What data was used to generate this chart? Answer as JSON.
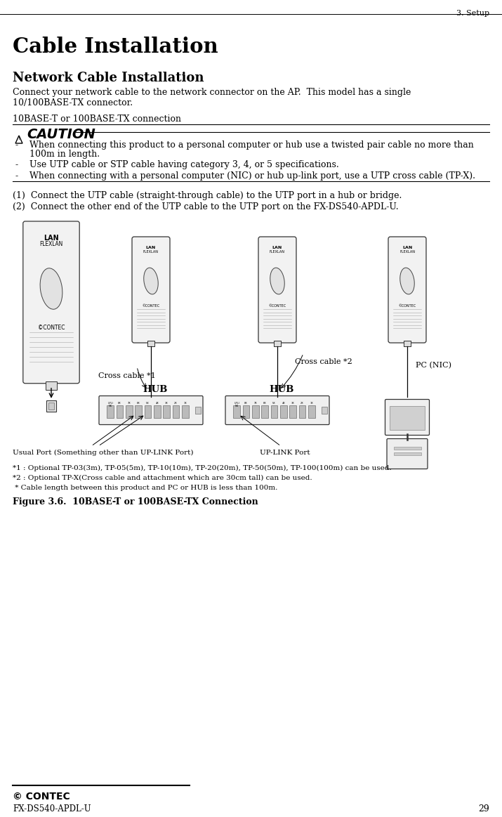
{
  "page_header": "3. Setup",
  "title": "Cable Installation",
  "subtitle": "Network Cable Installation",
  "body_text_1": "Connect your network cable to the network connector on the AP.  This model has a single",
  "body_text_2": "10/100BASE-TX connector.",
  "connection_label": "10BASE-T or 100BASE-TX connection",
  "caution_title": "CAUTION",
  "caution_item1a": "When connecting this product to a personal computer or hub use a twisted pair cable no more than",
  "caution_item1b": "100m in length.",
  "caution_item2": "Use UTP cable or STP cable having category 3, 4, or 5 specifications.",
  "caution_item3": "When connecting with a personal computer (NIC) or hub up-link port, use a UTP cross cable (TP-X).",
  "step1": "(1)  Connect the UTP cable (straight-through cable) to the UTP port in a hub or bridge.",
  "step2": "(2)  Connect the other end of the UTP cable to the UTP port on the FX-DS540-APDL-U.",
  "label_cross1": "Cross cable *1",
  "label_hub1": "HUB",
  "label_cross2": "Cross cable *2",
  "label_hub2": "HUB",
  "label_pc": "PC (NIC)",
  "label_usual": "Usual Port (Something other than UP-LINK Port)",
  "label_uplink": "UP-LINK Port",
  "note1": "*1 : Optional TP-03(3m), TP-05(5m), TP-10(10m), TP-20(20m), TP-50(50m), TP-100(100m) can be used.",
  "note2": "*2 : Optional TP-X(Cross cable and attachment which are 30cm tall) can be used.",
  "note3": " * Cable length between this product and PC or HUB is less than 100m.",
  "fig_caption": "Figure 3.6.  10BASE-T or 100BASE-TX Connection",
  "footer_logo": "© CONTEC",
  "footer_model": "FX-DS540-APDL-U",
  "footer_page": "29",
  "bg_color": "#ffffff"
}
